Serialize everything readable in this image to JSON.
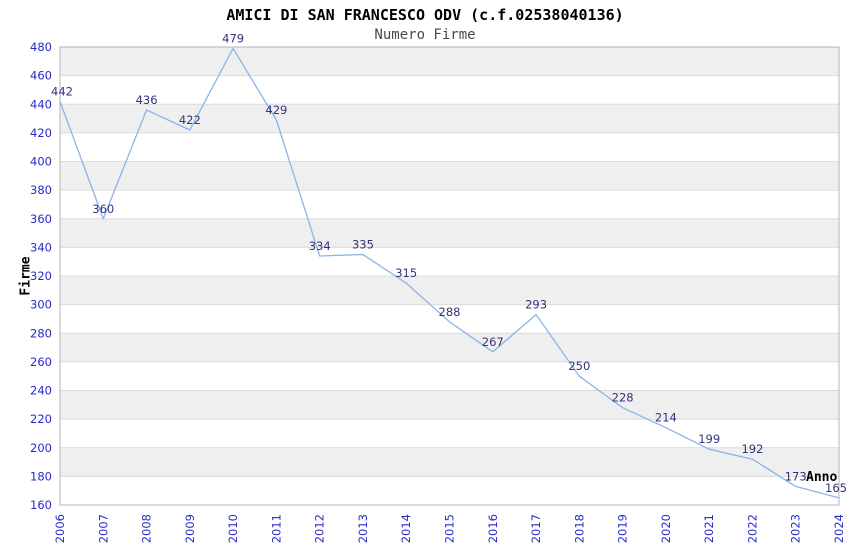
{
  "chart_data": {
    "type": "line",
    "title": "AMICI DI SAN FRANCESCO ODV (c.f.02538040136)",
    "subtitle": "Numero Firme",
    "xlabel": "Anno",
    "ylabel": "Firme",
    "categories": [
      "2006",
      "2007",
      "2008",
      "2009",
      "2010",
      "2011",
      "2012",
      "2013",
      "2014",
      "2015",
      "2016",
      "2017",
      "2018",
      "2019",
      "2020",
      "2021",
      "2022",
      "2023",
      "2024"
    ],
    "series": [
      {
        "name": "Numero Firme",
        "values": [
          442,
          360,
          436,
          422,
          479,
          429,
          334,
          335,
          315,
          288,
          267,
          293,
          250,
          228,
          214,
          199,
          192,
          173,
          165
        ]
      }
    ],
    "ylim": [
      160,
      480
    ],
    "ytick_step": 20,
    "grid": "horizontal-only",
    "legend": "none",
    "point_labels_visible": true,
    "x_tick_rotation_degrees": -90,
    "colors": {
      "line": "#8ab4e8",
      "tick_label": "#2a2ac8",
      "point_label": "#32327d",
      "band_fill": "#efefef",
      "gridline": "#dcdcdc",
      "plot_border": "#b5b5b5",
      "title": "#000000",
      "subtitle": "#4a4a4a",
      "background": "#ffffff"
    }
  }
}
